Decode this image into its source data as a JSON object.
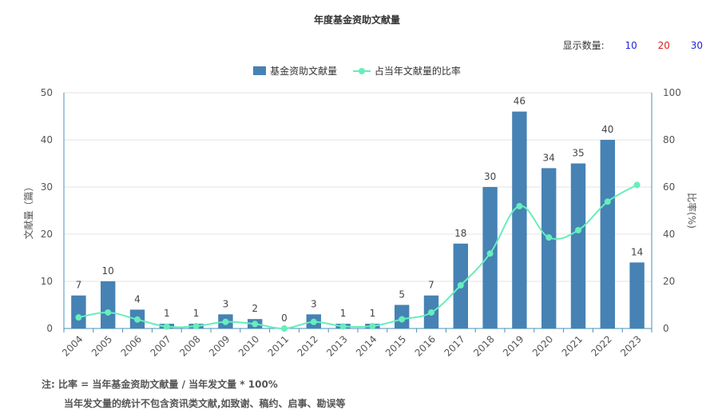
{
  "title": "年度基金资助文献量",
  "show_count": {
    "label": "显示数量:",
    "options": [
      "10",
      "20",
      "30"
    ],
    "colors": [
      "#2222dd",
      "#dd2222",
      "#2222dd"
    ]
  },
  "legend": {
    "bar": "基金资助文献量",
    "line": "占当年文献量的比率"
  },
  "notes": {
    "line1": "注:  比率 = 当年基金资助文献量 / 当年发文量 * 100%",
    "line2": "当年发文量的统计不包含资讯类文献,如致谢、稿约、启事、勘误等"
  },
  "colors": {
    "bar": "#4682b4",
    "line": "#66eebb",
    "axis": "#4a90b8",
    "grid": "#e3e3e3"
  },
  "chart_data": {
    "type": "bar",
    "categories": [
      "2004",
      "2005",
      "2006",
      "2007",
      "2008",
      "2009",
      "2010",
      "2011",
      "2012",
      "2013",
      "2014",
      "2015",
      "2016",
      "2017",
      "2018",
      "2019",
      "2020",
      "2021",
      "2022",
      "2023"
    ],
    "series": [
      {
        "name": "基金资助文献量",
        "type": "bar",
        "axis": "left",
        "values": [
          7,
          10,
          4,
          1,
          1,
          3,
          2,
          0,
          3,
          1,
          1,
          5,
          7,
          18,
          30,
          46,
          34,
          35,
          40,
          14
        ]
      },
      {
        "name": "占当年文献量的比率",
        "type": "line",
        "axis": "right",
        "values": [
          4.7,
          6.8,
          3.8,
          0.8,
          1.0,
          2.8,
          1.9,
          0,
          2.8,
          0.9,
          1.0,
          3.9,
          6.8,
          18.3,
          31.8,
          51.9,
          38.6,
          41.7,
          53.8,
          60.9
        ]
      }
    ],
    "ylabel": "文献量（篇）",
    "y2label": "比率(%)",
    "ylim": [
      0,
      50
    ],
    "y2lim": [
      0,
      100
    ],
    "yticks": [
      0,
      10,
      20,
      30,
      40,
      50
    ],
    "y2ticks": [
      0,
      20,
      40,
      60,
      80,
      100
    ],
    "grid": true,
    "legend_position": "top-center"
  }
}
